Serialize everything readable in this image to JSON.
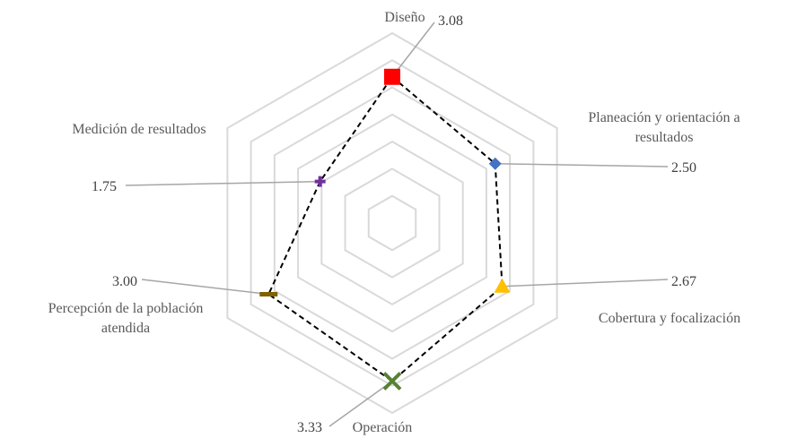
{
  "chart_data": {
    "type": "radar",
    "title": "",
    "scale_max": 4,
    "grid_levels": 7,
    "grid": true,
    "legend": "none",
    "categories": [
      "Diseño",
      "Planeación y orientación a resultados",
      "Cobertura y focalización",
      "Operación",
      "Percepción de la población atendida",
      "Medición de resultados"
    ],
    "category_lines": [
      [
        "Diseño"
      ],
      [
        "Planeación y orientación a",
        "resultados"
      ],
      [
        "Cobertura y focalización"
      ],
      [
        "Operación"
      ],
      [
        "Percepción de la población",
        "atendida"
      ],
      [
        "Medición de resultados"
      ]
    ],
    "values": [
      3.08,
      2.5,
      2.67,
      3.33,
      3.0,
      1.75
    ],
    "value_labels": [
      "3.08",
      "2.50",
      "2.67",
      "3.33",
      "3.00",
      "1.75"
    ],
    "marker_shapes": [
      "square",
      "diamond",
      "triangle",
      "x",
      "dash",
      "plus"
    ],
    "marker_colors": [
      "#ff0000",
      "#4472c4",
      "#ffc000",
      "#548235",
      "#806000",
      "#7030a0"
    ],
    "line_color": "#000000",
    "grid_color": "#d9d9d9"
  }
}
